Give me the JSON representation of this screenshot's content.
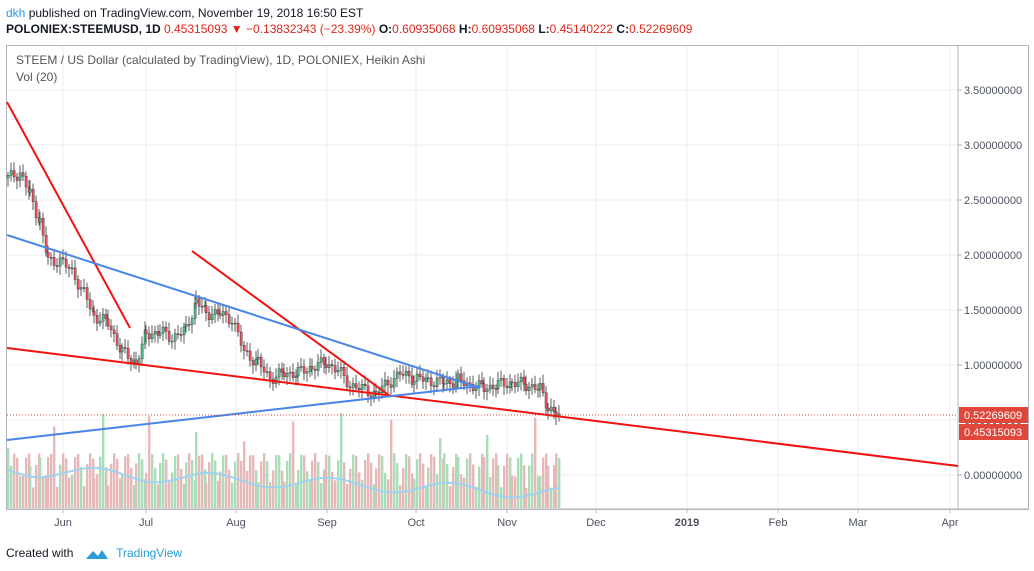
{
  "header": {
    "author": "dkh",
    "published_text": "published on TradingView.com, November 19, 2018 16:50 EST",
    "symbol": "POLONIEX:STEEMUSD, 1D",
    "last": "0.45315093",
    "change_arrow": "▼",
    "change": "−0.13832343 (−23.39%)",
    "o_label": "O:",
    "o": "0.60935068",
    "h_label": "H:",
    "h": "0.60935068",
    "l_label": "L:",
    "l": "0.45140222",
    "c_label": "C:",
    "c": "0.52269609"
  },
  "legend": {
    "title": "STEEM / US Dollar (calculated by TradingView), 1D, POLONIEX, Heikin Ashi",
    "vol": "Vol (20)"
  },
  "price_axis": {
    "ticks": [
      "3.50000000",
      "3.00000000",
      "2.50000000",
      "2.00000000",
      "1.50000000",
      "1.00000000",
      "0.50000000",
      "0.00000000"
    ],
    "ticks_values": [
      3.5,
      3.0,
      2.5,
      2.0,
      1.5,
      1.0,
      0.5,
      0.0
    ],
    "badge_close": "0.52269609",
    "badge_last": "0.45315093",
    "badge_close_value": 0.52269609,
    "badge_last_value": 0.45315093
  },
  "time_axis": {
    "labels": [
      "Jun",
      "Jul",
      "Aug",
      "Sep",
      "Oct",
      "Nov",
      "Dec",
      "2019",
      "Feb",
      "Mar",
      "Apr"
    ]
  },
  "colors": {
    "up": "#53b987",
    "down": "#eb4d5c",
    "trend_red": "#f0120f",
    "trend_blue": "#4a86e8",
    "vol_up": "#a9dcb7",
    "vol_down": "#e7b8b8",
    "vol_ma": "#9fd2f0",
    "badge": "#e0463a"
  },
  "footer": {
    "created_with": "Created with",
    "brand": "TradingView"
  }
}
